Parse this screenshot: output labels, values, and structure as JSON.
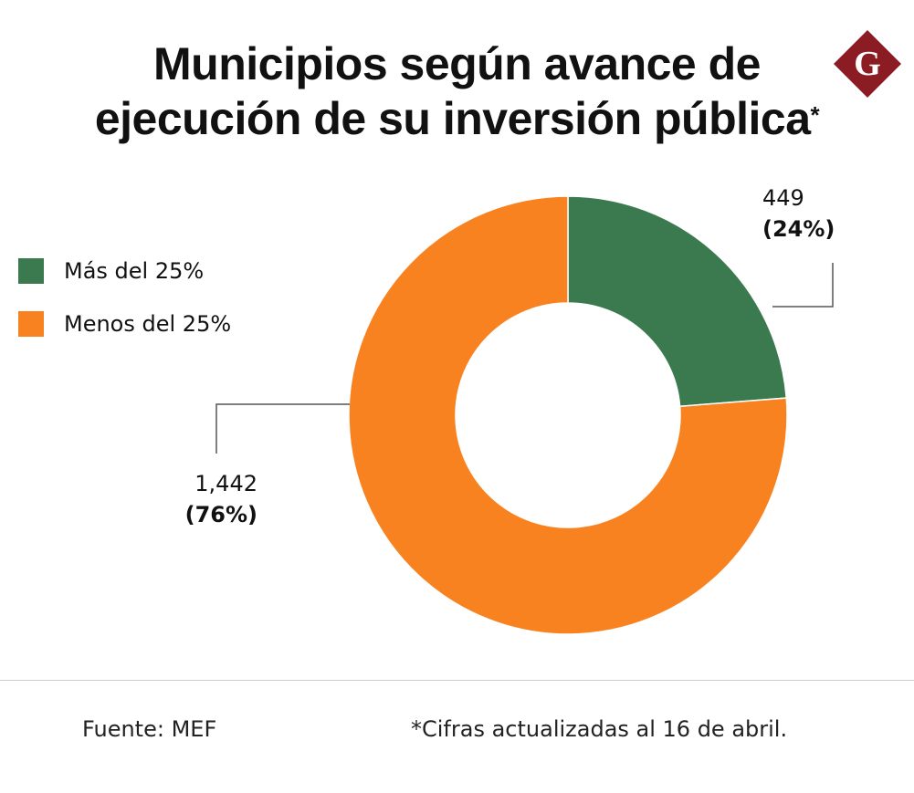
{
  "title": {
    "line1": "Municipios según avance de",
    "line2": "ejecución de su inversión pública",
    "asterisk": "*"
  },
  "logo": {
    "letter": "G",
    "color": "#8b1c24"
  },
  "chart_data": {
    "type": "pie",
    "donut": true,
    "categories": [
      "Más del 25%",
      "Menos del 25%"
    ],
    "values": [
      449,
      1442
    ],
    "percent_labels": [
      "(24%)",
      "(76%)"
    ],
    "value_labels": [
      "449",
      "1,442"
    ],
    "colors": [
      "#3a7a4e",
      "#f98220"
    ],
    "legend": "left"
  },
  "footer": {
    "source": "Fuente: MEF",
    "note": "*Cifras actualizadas al 16 de abril."
  }
}
